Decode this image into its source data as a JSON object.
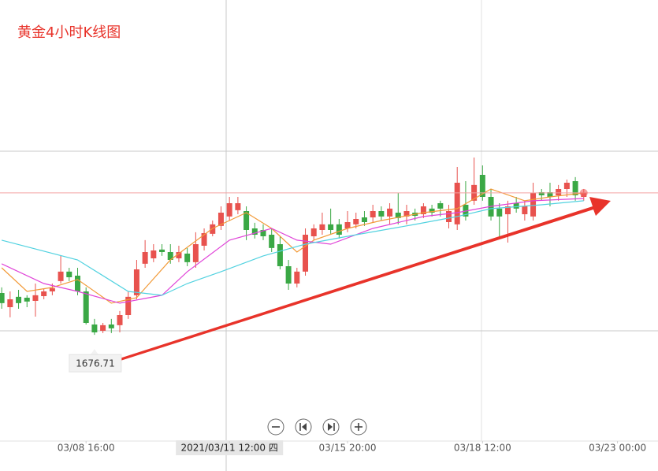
{
  "chart_data": {
    "type": "candlestick",
    "title": "黄金4小时K线图",
    "xlim": [
      -0.2,
      77.8
    ],
    "ylim": [
      1629.5,
      1825.5
    ],
    "xticks": [
      {
        "value": 10,
        "label": "03/08 16:00"
      },
      {
        "value": 27,
        "label": "2021/03/11 12:00 四",
        "highlighted": true
      },
      {
        "value": 41,
        "label": "03/15 20:00"
      },
      {
        "value": 57,
        "label": "03/18 12:00"
      },
      {
        "value": 73,
        "label": "03/23 00:00"
      }
    ],
    "up_color": "#e8524e",
    "down_color": "#3aa845",
    "open": [
      1695.3,
      1689.0,
      1693.6,
      1693.2,
      1691.8,
      1693.9,
      1696.0,
      1700.6,
      1704.8,
      1703.0,
      1696.0,
      1681.3,
      1678.5,
      1681.3,
      1681.0,
      1685.5,
      1694.3,
      1708.3,
      1710.7,
      1714.6,
      1713.5,
      1710.7,
      1712.8,
      1709.0,
      1716.3,
      1721.6,
      1725.1,
      1729.3,
      1732.1,
      1731.7,
      1724.0,
      1723.3,
      1721.2,
      1717.0,
      1707.2,
      1699.5,
      1704.8,
      1720.5,
      1723.3,
      1725.8,
      1725.8,
      1724.0,
      1725.8,
      1728.9,
      1728.9,
      1731.7,
      1729.3,
      1731.0,
      1729.3,
      1731.0,
      1730.3,
      1732.8,
      1735.2,
      1726.8,
      1725.8,
      1734.5,
      1736.3,
      1747.8,
      1738.0,
      1732.8,
      1730.3,
      1735.2,
      1730.3,
      1729.3,
      1740.1,
      1740.1,
      1738.7,
      1741.5,
      1745.0,
      1738.0
    ],
    "close": [
      1690.8,
      1692.5,
      1690.8,
      1691.5,
      1694.3,
      1696.0,
      1697.4,
      1704.8,
      1702.3,
      1696.0,
      1682.0,
      1677.8,
      1681.0,
      1679.6,
      1685.5,
      1693.6,
      1705.8,
      1713.5,
      1714.2,
      1713.5,
      1710.0,
      1713.5,
      1709.0,
      1717.0,
      1721.9,
      1725.8,
      1731.0,
      1735.2,
      1735.2,
      1723.3,
      1721.2,
      1720.5,
      1715.3,
      1707.2,
      1699.5,
      1704.8,
      1721.2,
      1724.0,
      1725.8,
      1723.3,
      1721.2,
      1726.8,
      1728.2,
      1726.8,
      1731.7,
      1729.3,
      1732.8,
      1728.6,
      1731.7,
      1729.6,
      1733.8,
      1731.0,
      1732.8,
      1731.7,
      1744.3,
      1729.3,
      1743.3,
      1738.0,
      1729.3,
      1729.3,
      1733.8,
      1732.8,
      1733.8,
      1739.8,
      1738.7,
      1738.0,
      1741.5,
      1744.3,
      1738.7,
      1739.8
    ],
    "high": [
      1697.8,
      1696.0,
      1696.7,
      1694.3,
      1699.5,
      1697.4,
      1699.5,
      1711.8,
      1706.5,
      1706.5,
      1697.8,
      1683.8,
      1682.0,
      1683.8,
      1687.3,
      1696.0,
      1710.0,
      1718.8,
      1717.0,
      1717.0,
      1717.0,
      1716.3,
      1715.3,
      1722.3,
      1724.0,
      1727.5,
      1733.8,
      1738.0,
      1738.0,
      1733.8,
      1726.5,
      1725.8,
      1724.0,
      1720.5,
      1710.0,
      1706.5,
      1724.0,
      1725.8,
      1731.0,
      1732.8,
      1728.2,
      1731.7,
      1731.0,
      1731.7,
      1734.5,
      1733.8,
      1735.2,
      1739.8,
      1734.5,
      1732.8,
      1735.2,
      1734.5,
      1736.3,
      1734.5,
      1751.3,
      1745.0,
      1755.5,
      1752.0,
      1741.5,
      1735.2,
      1736.3,
      1738.0,
      1736.3,
      1744.3,
      1741.5,
      1744.3,
      1743.3,
      1745.7,
      1746.8,
      1741.5
    ],
    "low": [
      1688.3,
      1684.5,
      1688.3,
      1689.0,
      1684.8,
      1692.5,
      1694.3,
      1699.5,
      1700.6,
      1694.3,
      1681.3,
      1676.71,
      1677.5,
      1677.5,
      1677.8,
      1683.8,
      1692.5,
      1706.5,
      1709.0,
      1711.8,
      1708.3,
      1709.0,
      1707.2,
      1706.5,
      1714.2,
      1720.5,
      1723.3,
      1727.5,
      1730.3,
      1718.8,
      1719.5,
      1718.8,
      1713.5,
      1705.8,
      1696.7,
      1697.8,
      1703.0,
      1718.8,
      1721.2,
      1721.6,
      1719.5,
      1722.3,
      1724.0,
      1725.1,
      1726.8,
      1727.5,
      1725.8,
      1725.8,
      1725.8,
      1727.5,
      1728.6,
      1729.3,
      1729.3,
      1724.0,
      1723.3,
      1727.5,
      1734.5,
      1736.3,
      1727.5,
      1720.5,
      1717.7,
      1731.0,
      1727.5,
      1727.5,
      1736.3,
      1733.8,
      1736.3,
      1738.0,
      1736.3,
      1736.3
    ],
    "series": [
      {
        "color": "#f29a38",
        "x": [
          0,
          3,
          6,
          9,
          13,
          16,
          20,
          25,
          29,
          32,
          35,
          37,
          41,
          45,
          50,
          54,
          58,
          62,
          65,
          69
        ],
        "values": [
          1706.5,
          1696.0,
          1697.8,
          1701.3,
          1690.8,
          1693.2,
          1710.0,
          1724.0,
          1731.0,
          1724.0,
          1713.5,
          1718.8,
          1724.0,
          1727.5,
          1731.0,
          1732.8,
          1741.5,
          1736.3,
          1738.0,
          1739.8
        ]
      },
      {
        "color": "#e044d8",
        "x": [
          0,
          5,
          9,
          14,
          19,
          22,
          27,
          32,
          35,
          39,
          44,
          50,
          54,
          58,
          63,
          69
        ],
        "values": [
          1708.3,
          1699.5,
          1696.0,
          1690.8,
          1694.3,
          1704.8,
          1718.8,
          1724.0,
          1718.8,
          1717.0,
          1724.0,
          1729.3,
          1731.0,
          1733.8,
          1736.3,
          1737.3
        ]
      },
      {
        "color": "#52d2e0",
        "x": [
          0,
          9,
          15,
          19,
          22,
          26,
          31,
          36,
          41,
          49,
          54,
          58,
          64,
          69
        ],
        "values": [
          1718.8,
          1710.0,
          1696.0,
          1694.3,
          1699.5,
          1704.8,
          1711.8,
          1717.0,
          1720.5,
          1725.8,
          1729.3,
          1732.8,
          1734.5,
          1736.3
        ]
      }
    ],
    "low_label_index": 11
  }
}
